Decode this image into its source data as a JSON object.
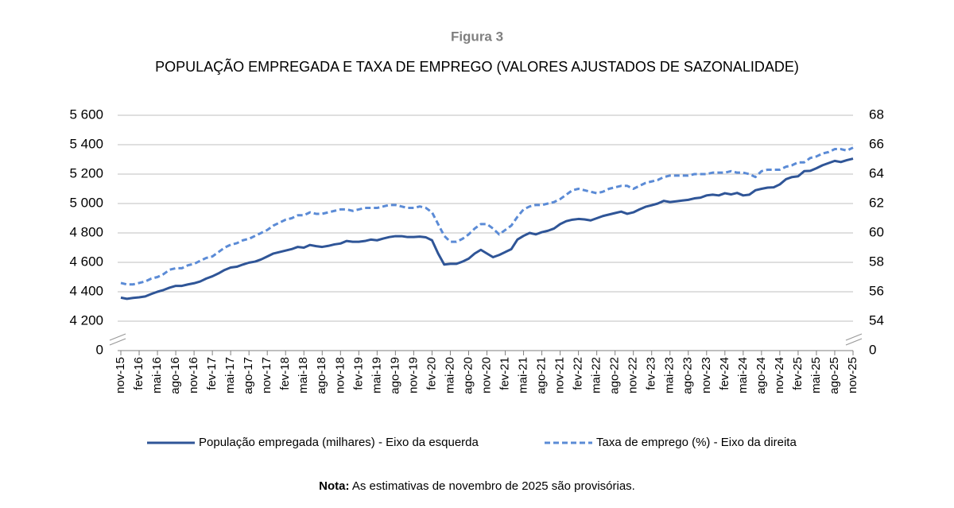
{
  "chart_data": {
    "type": "line",
    "title": "Figura 3",
    "subtitle": "POPULAÇÃO EMPREGADA E TAXA DE EMPREGO (VALORES AJUSTADOS DE SAZONALIDADE)",
    "note_label": "Nota:",
    "note": "As estimativas de novembro de 2025 são provisórias.",
    "categories": [
      "nov-15",
      null,
      null,
      "fev-16",
      null,
      null,
      "mai-16",
      null,
      null,
      "ago-16",
      null,
      null,
      "nov-16",
      null,
      null,
      "fev-17",
      null,
      null,
      "mai-17",
      null,
      null,
      "ago-17",
      null,
      null,
      "nov-17",
      null,
      null,
      "fev-18",
      null,
      null,
      "mai-18",
      null,
      null,
      "ago-18",
      null,
      null,
      "nov-18",
      null,
      null,
      "fev-19",
      null,
      null,
      "mai-19",
      null,
      null,
      "ago-19",
      null,
      null,
      "nov-19",
      null,
      null,
      "fev-20",
      null,
      null,
      "mai-20",
      null,
      null,
      "ago-20",
      null,
      null,
      "nov-20",
      null,
      null,
      "fev-21",
      null,
      null,
      "mai-21",
      null,
      null,
      "ago-21",
      null,
      null,
      "nov-21",
      null,
      null,
      "fev-22",
      null,
      null,
      "mai-22",
      null,
      null,
      "ago-22",
      null,
      null,
      "nov-22",
      null,
      null,
      "fev-23",
      null,
      null,
      "mai-23",
      null,
      null,
      "ago-23",
      null,
      null,
      "nov-23",
      null,
      null,
      "fev-24",
      null,
      null,
      "mai-24",
      null,
      null,
      "ago-24",
      null,
      null,
      "nov-24",
      null,
      null,
      "fev-25",
      null,
      null,
      "mai-25",
      null,
      null,
      "ago-25",
      null,
      null,
      "nov-25"
    ],
    "series": [
      {
        "name": "População empregada (milhares) - Eixo da esquerda",
        "color": "#2f5597",
        "dashed": false,
        "values": [
          4360,
          4352,
          4358,
          4362,
          4368,
          4385,
          4400,
          4412,
          4428,
          4440,
          4440,
          4450,
          4458,
          4470,
          4490,
          4505,
          4525,
          4548,
          4565,
          4570,
          4585,
          4598,
          4605,
          4620,
          4640,
          4660,
          4670,
          4680,
          4690,
          4705,
          4700,
          4718,
          4710,
          4705,
          4712,
          4722,
          4728,
          4745,
          4740,
          4740,
          4745,
          4755,
          4750,
          4762,
          4772,
          4778,
          4778,
          4772,
          4772,
          4775,
          4770,
          4750,
          4660,
          4585,
          4590,
          4590,
          4605,
          4625,
          4660,
          4685,
          4660,
          4635,
          4650,
          4670,
          4690,
          4755,
          4780,
          4800,
          4790,
          4805,
          4815,
          4830,
          4860,
          4880,
          4890,
          4895,
          4892,
          4885,
          4900,
          4915,
          4925,
          4935,
          4945,
          4930,
          4940,
          4960,
          4978,
          4988,
          5000,
          5018,
          5010,
          5015,
          5020,
          5025,
          5035,
          5040,
          5055,
          5060,
          5055,
          5070,
          5062,
          5072,
          5055,
          5060,
          5090,
          5100,
          5108,
          5110,
          5130,
          5165,
          5180,
          5185,
          5220,
          5222,
          5240,
          5260,
          5275,
          5290,
          5282,
          5295,
          5305
        ]
      },
      {
        "name": "Taxa de emprego (%) - Eixo da direita",
        "color": "#5b8bd6",
        "dashed": true,
        "axis": "y2",
        "values": [
          56.6,
          56.5,
          56.5,
          56.6,
          56.7,
          56.9,
          57.0,
          57.2,
          57.5,
          57.6,
          57.6,
          57.8,
          57.9,
          58.1,
          58.3,
          58.4,
          58.7,
          59.0,
          59.2,
          59.3,
          59.5,
          59.6,
          59.8,
          60.0,
          60.2,
          60.5,
          60.7,
          60.9,
          61.0,
          61.2,
          61.2,
          61.4,
          61.3,
          61.3,
          61.4,
          61.5,
          61.6,
          61.6,
          61.5,
          61.6,
          61.7,
          61.7,
          61.7,
          61.8,
          61.9,
          61.9,
          61.8,
          61.7,
          61.7,
          61.8,
          61.7,
          61.4,
          60.6,
          59.8,
          59.4,
          59.4,
          59.6,
          59.9,
          60.3,
          60.6,
          60.6,
          60.3,
          59.9,
          60.2,
          60.5,
          61.1,
          61.6,
          61.8,
          61.9,
          61.9,
          62.0,
          62.1,
          62.3,
          62.6,
          62.9,
          63.0,
          62.9,
          62.8,
          62.7,
          62.8,
          63.0,
          63.1,
          63.2,
          63.2,
          63.0,
          63.2,
          63.4,
          63.5,
          63.6,
          63.8,
          63.9,
          63.9,
          63.9,
          63.9,
          64.0,
          64.0,
          64.0,
          64.1,
          64.1,
          64.1,
          64.2,
          64.1,
          64.1,
          64.0,
          63.8,
          64.2,
          64.3,
          64.3,
          64.3,
          64.5,
          64.6,
          64.8,
          64.8,
          65.1,
          65.2,
          65.4,
          65.5,
          65.7,
          65.7,
          65.6,
          65.8
        ]
      }
    ],
    "ylim": [
      4000,
      5600
    ],
    "yticks": [
      {
        "value": 4200,
        "label": "4 200"
      },
      {
        "value": 4400,
        "label": "4 400"
      },
      {
        "value": 4600,
        "label": "4 600"
      },
      {
        "value": 4800,
        "label": "4 800"
      },
      {
        "value": 5000,
        "label": "5 000"
      },
      {
        "value": 5200,
        "label": "5 200"
      },
      {
        "value": 5400,
        "label": "5 400"
      },
      {
        "value": 5600,
        "label": "5 600"
      }
    ],
    "y_origin_label": "0",
    "y2lim": [
      52,
      68
    ],
    "y2ticks": [
      54,
      56,
      58,
      60,
      62,
      64,
      66,
      68
    ],
    "y2_origin_label": "0",
    "grid": true
  }
}
